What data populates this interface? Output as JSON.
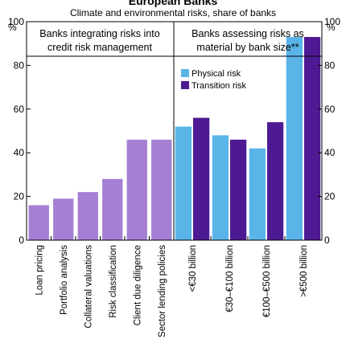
{
  "chart_data": {
    "type": "bar",
    "title": "European Banks",
    "subtitle": "Climate and environmental risks, share of banks",
    "ylabel_left": "%",
    "ylabel_right": "%",
    "ylim": [
      0,
      100
    ],
    "yticks": [
      0,
      20,
      40,
      60,
      80,
      100
    ],
    "grid": false,
    "panels": [
      {
        "heading_line1": "Banks integrating risks into",
        "heading_line2": "credit risk management",
        "categories": [
          "Loan pricing",
          "Portfolio analysis",
          "Collateral valuations",
          "Risk classification",
          "Client due diligence",
          "Sector lending policies"
        ],
        "series": [
          {
            "color": "#a57fd4",
            "values": [
              16,
              19,
              22,
              28,
              46,
              46
            ]
          }
        ]
      },
      {
        "heading_line1": "Banks assessing risks as",
        "heading_line2": "material by bank size**",
        "categories": [
          "<€30 billion",
          "€30–€100 billion",
          "€100–€500 billion",
          ">€500 billion"
        ],
        "legend_position": "top-left",
        "series": [
          {
            "name": "Physical risk",
            "color": "#5ab4e8",
            "values": [
              52,
              48,
              42,
              93
            ]
          },
          {
            "name": "Transition risk",
            "color": "#4e1a93",
            "values": [
              56,
              46,
              54,
              93
            ]
          }
        ]
      }
    ]
  }
}
